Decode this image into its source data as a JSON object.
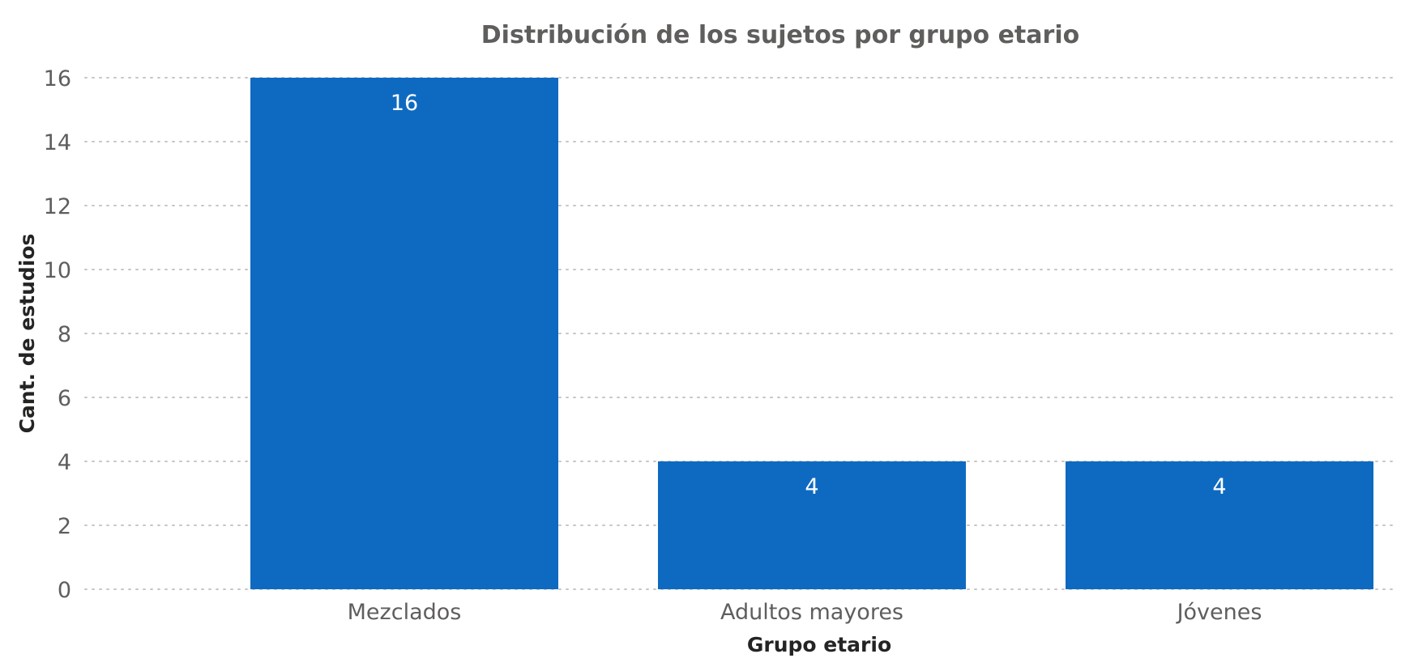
{
  "chart_data": {
    "type": "bar",
    "title": "Distribución de los sujetos por grupo etario",
    "xlabel": "Grupo etario",
    "ylabel": "Cant. de estudios",
    "categories": [
      "Mezclados",
      "Adultos mayores",
      "Jóvenes"
    ],
    "values": [
      16,
      4,
      4
    ],
    "data_labels": [
      "16",
      "4",
      "4"
    ],
    "ylim": [
      0,
      16
    ],
    "yticks": [
      0,
      2,
      4,
      6,
      8,
      10,
      12,
      14,
      16
    ],
    "grid": true,
    "bar_color": "#0e6ac1",
    "grid_color": "#c8c6c4"
  }
}
